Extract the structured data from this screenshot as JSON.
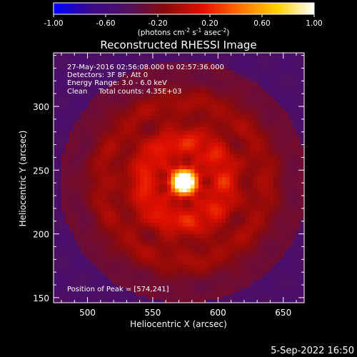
{
  "chart_data": {
    "type": "heatmap",
    "title": "Reconstructed RHESSI Image",
    "xlabel": "Heliocentric X (arcsec)",
    "ylabel": "Heliocentric Y (arcsec)",
    "xlim": [
      474,
      666
    ],
    "ylim": [
      146,
      342
    ],
    "xticks": [
      500,
      550,
      600,
      650
    ],
    "yticks": [
      150,
      200,
      250,
      300
    ],
    "colorbar": {
      "range": [
        -1.0,
        1.0
      ],
      "ticks": [
        "-1.00",
        "-0.60",
        "-0.20",
        "0.20",
        "0.60",
        "1.00"
      ],
      "tick_values": [
        -1.0,
        -0.6,
        -0.2,
        0.2,
        0.6,
        1.0
      ],
      "unit_text": "(photons cm",
      "unit_sup1": "-2",
      "unit_mid": " s",
      "unit_sup2": "-1",
      "unit_end": " asec",
      "unit_sup3": "-2",
      "unit_close": ")",
      "colors": [
        "#0000ff",
        "#3a0a8a",
        "#501060",
        "#8a0a0a",
        "#e01000",
        "#ff7000",
        "#ffd000",
        "#ffffff"
      ]
    },
    "annotations": {
      "time": "27-May-2016 02:56:08.000 to 02:57:36.000",
      "detectors": "Detectors: 3F 8F, Att 0",
      "energy": "Energy Range: 3.0 - 6.0 keV",
      "clean": "Clean     Total counts: 4.35E+03",
      "peak": "Position of Peak = [574,241]"
    },
    "peak": [
      574,
      241
    ],
    "background_level": -0.25
  },
  "footer": {
    "timestamp": "5-Sep-2022 16:50"
  }
}
